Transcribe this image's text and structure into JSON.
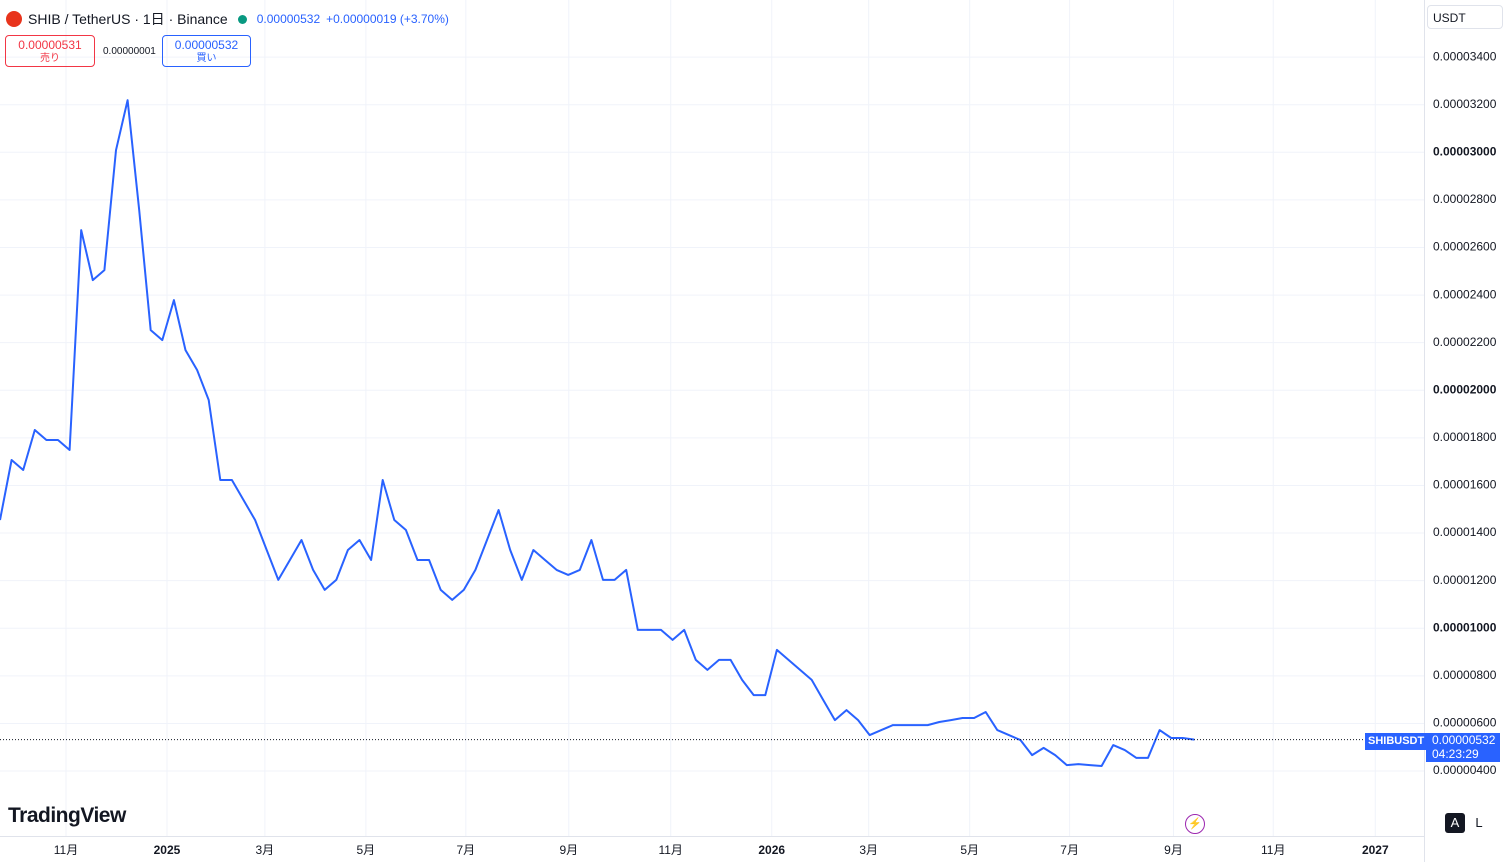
{
  "header": {
    "symbol": "SHIB / TetherUS · 1日 · Binance",
    "price": "0.00000532",
    "change": "+0.00000019 (+3.70%)",
    "sell_price": "0.00000531",
    "sell_label": "売り",
    "spread": "0.00000001",
    "buy_price": "0.00000532",
    "buy_label": "買い",
    "currency": "USDT",
    "brand": "TradingView",
    "auto_button": "A",
    "log_button": "L",
    "symbol_tag": "SHIBUSDT",
    "countdown": "04:23:29"
  },
  "chart_data": {
    "type": "line",
    "categories": [
      null,
      null,
      null,
      null,
      null,
      null,
      null,
      null,
      null,
      null,
      null,
      null,
      null,
      null,
      null,
      null,
      null,
      null,
      null,
      null,
      null,
      null,
      null,
      null,
      null,
      null,
      null,
      null,
      null,
      null,
      null,
      null,
      null,
      null,
      null,
      null,
      null,
      null,
      null,
      null,
      null,
      null,
      null,
      null,
      null,
      null,
      null,
      null,
      null,
      null,
      null,
      null,
      null,
      null,
      null,
      null,
      null,
      null,
      null,
      null,
      null,
      null,
      null,
      null,
      null,
      null,
      null,
      null,
      null,
      null,
      null,
      null,
      null,
      null,
      null,
      null,
      null,
      null,
      null,
      null,
      null,
      null,
      null,
      null,
      null,
      null,
      null,
      null,
      null,
      null,
      null,
      null,
      null,
      null,
      null,
      null,
      null,
      null,
      null,
      null,
      null,
      null,
      null,
      null
    ],
    "series": [
      {
        "name": "SHIBUSDT",
        "color": "#2962ff",
        "values": [
          1.455e-05,
          1.707e-05,
          1.665e-05,
          1.833e-05,
          1.791e-05,
          1.791e-05,
          1.749e-05,
          2.673e-05,
          2.463e-05,
          2.505e-05,
          3.009e-05,
          3.219e-05,
          2.757e-05,
          2.253e-05,
          2.211e-05,
          2.379e-05,
          2.169e-05,
          2.085e-05,
          1.959e-05,
          1.623e-05,
          1.623e-05,
          1.539e-05,
          1.455e-05,
          1.329e-05,
          1.203e-05,
          1.287e-05,
          1.371e-05,
          1.245e-05,
          1.161e-05,
          1.203e-05,
          1.329e-05,
          1.371e-05,
          1.287e-05,
          1.623e-05,
          1.455e-05,
          1.413e-05,
          1.287e-05,
          1.287e-05,
          1.161e-05,
          1.119e-05,
          1.161e-05,
          1.245e-05,
          1.371e-05,
          1.497e-05,
          1.329e-05,
          1.203e-05,
          1.329e-05,
          1.287e-05,
          1.245e-05,
          1.224e-05,
          1.245e-05,
          1.371e-05,
          1.203e-05,
          1.203e-05,
          1.245e-05,
          9.93e-06,
          9.93e-06,
          9.93e-06,
          9.51e-06,
          9.93e-06,
          8.67e-06,
          8.25e-06,
          8.67e-06,
          8.67e-06,
          7.83e-06,
          7.19e-06,
          7.19e-06,
          9.09e-06,
          8.67e-06,
          8.25e-06,
          7.83e-06,
          6.98e-06,
          6.14e-06,
          6.56e-06,
          6.14e-06,
          5.51e-06,
          5.72e-06,
          5.93e-06,
          5.93e-06,
          5.93e-06,
          5.93e-06,
          6.06e-06,
          6.14e-06,
          6.23e-06,
          6.23e-06,
          6.48e-06,
          5.72e-06,
          5.51e-06,
          5.3e-06,
          4.67e-06,
          4.97e-06,
          4.67e-06,
          4.25e-06,
          4.29e-06,
          4.25e-06,
          4.21e-06,
          5.09e-06,
          4.88e-06,
          4.55e-06,
          4.55e-06,
          5.72e-06,
          5.39e-06,
          5.39e-06,
          5.32e-06
        ]
      }
    ],
    "last_price": 5.32e-06,
    "xlim": [
      0,
      122.8
    ],
    "xticks": [
      {
        "value": 5.69,
        "label": "11月"
      },
      {
        "value": 14.4,
        "label": "2025"
      },
      {
        "value": 22.84,
        "label": "3月"
      },
      {
        "value": 31.55,
        "label": "5月"
      },
      {
        "value": 40.17,
        "label": "7月"
      },
      {
        "value": 49.05,
        "label": "9月"
      },
      {
        "value": 57.84,
        "label": "11月"
      },
      {
        "value": 66.55,
        "label": "2026"
      },
      {
        "value": 74.91,
        "label": "3月"
      },
      {
        "value": 83.62,
        "label": "5月"
      },
      {
        "value": 92.24,
        "label": "7月"
      },
      {
        "value": 101.2,
        "label": "9月"
      },
      {
        "value": 109.8,
        "label": "11月"
      },
      {
        "value": 118.6,
        "label": "2027"
      }
    ],
    "ylim": [
      1.27e-06,
      3.64e-05
    ],
    "yticks": [
      {
        "value": 4e-06,
        "label": "0.00000400"
      },
      {
        "value": 6e-06,
        "label": "0.00000600"
      },
      {
        "value": 8e-06,
        "label": "0.00000800"
      },
      {
        "value": 1e-05,
        "label": "0.00001000"
      },
      {
        "value": 1.2e-05,
        "label": "0.00001200"
      },
      {
        "value": 1.4e-05,
        "label": "0.00001400"
      },
      {
        "value": 1.6e-05,
        "label": "0.00001600"
      },
      {
        "value": 1.8e-05,
        "label": "0.00001800"
      },
      {
        "value": 2e-05,
        "label": "0.00002000"
      },
      {
        "value": 2.2e-05,
        "label": "0.00002200"
      },
      {
        "value": 2.4e-05,
        "label": "0.00002400"
      },
      {
        "value": 2.6e-05,
        "label": "0.00002600"
      },
      {
        "value": 2.8e-05,
        "label": "0.00002800"
      },
      {
        "value": 3e-05,
        "label": "0.00003000"
      },
      {
        "value": 3.2e-05,
        "label": "0.00003200"
      },
      {
        "value": 3.4e-05,
        "label": "0.00003400"
      }
    ],
    "grid": true
  }
}
